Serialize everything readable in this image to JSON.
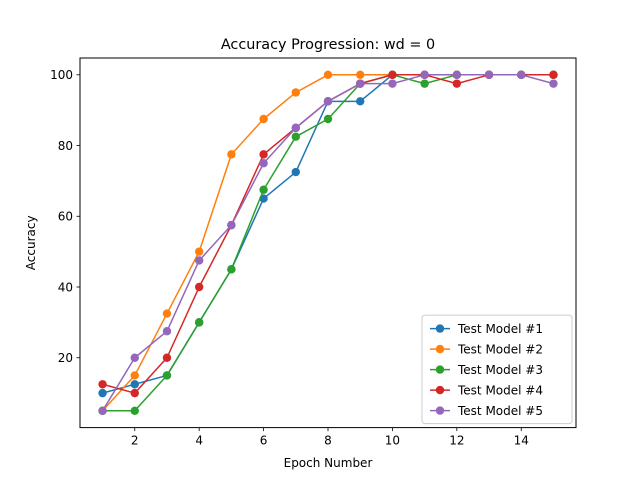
{
  "chart_data": {
    "type": "line",
    "title": "Accuracy Progression: wd = 0",
    "xlabel": "Epoch Number",
    "ylabel": "Accuracy",
    "xlim": [
      0.3,
      15.7
    ],
    "ylim": [
      0.25,
      104.75
    ],
    "xticks": [
      2,
      4,
      6,
      8,
      10,
      12,
      14
    ],
    "yticks": [
      20,
      40,
      60,
      80,
      100
    ],
    "grid": false,
    "legend_position": "lower-right",
    "x": [
      1,
      2,
      3,
      4,
      5,
      6,
      7,
      8,
      9,
      10,
      11,
      12,
      13,
      14,
      15
    ],
    "series": [
      {
        "name": "Test Model #1",
        "color": "#1f77b4",
        "values": [
          10,
          12.5,
          15,
          30,
          45,
          65,
          72.5,
          92.5,
          92.5,
          100,
          100,
          100,
          100,
          100,
          100
        ]
      },
      {
        "name": "Test Model #2",
        "color": "#ff7f0e",
        "values": [
          5,
          15,
          32.5,
          50,
          77.5,
          87.5,
          95,
          100,
          100,
          100,
          100,
          100,
          100,
          100,
          100
        ]
      },
      {
        "name": "Test Model #3",
        "color": "#2ca02c",
        "values": [
          5,
          5,
          15,
          30,
          45,
          67.5,
          82.5,
          87.5,
          97.5,
          100,
          97.5,
          100,
          100,
          100,
          100
        ]
      },
      {
        "name": "Test Model #4",
        "color": "#d62728",
        "values": [
          12.5,
          10,
          20,
          40,
          57.5,
          77.5,
          85,
          92.5,
          97.5,
          100,
          100,
          97.5,
          100,
          100,
          100
        ]
      },
      {
        "name": "Test Model #5",
        "color": "#9467bd",
        "values": [
          5,
          20,
          27.5,
          47.5,
          57.5,
          75,
          85,
          92.5,
          97.5,
          97.5,
          100,
          100,
          100,
          100,
          97.5
        ]
      }
    ]
  }
}
